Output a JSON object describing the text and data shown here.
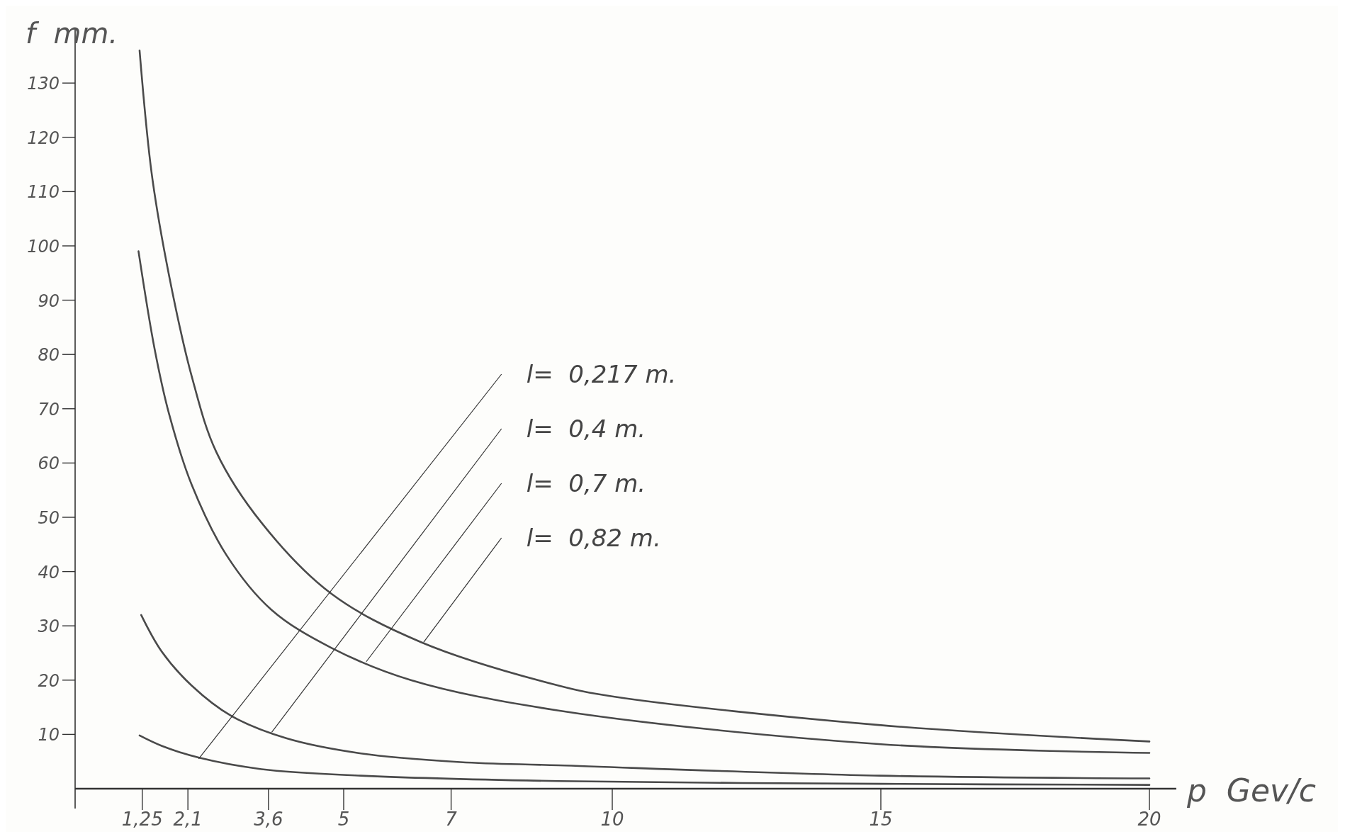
{
  "chart_data": {
    "type": "line",
    "xlabel": "p  Gev/c",
    "ylabel": "f  mm.",
    "xlim": [
      0,
      20.5
    ],
    "ylim": [
      0,
      140
    ],
    "xticks": [
      {
        "value": 1.25,
        "label": "1,25"
      },
      {
        "value": 2.1,
        "label": "2,1"
      },
      {
        "value": 3.6,
        "label": "3,6"
      },
      5,
      7,
      10,
      15,
      20
    ],
    "yticks": [
      10,
      20,
      30,
      40,
      50,
      60,
      70,
      80,
      90,
      100,
      110,
      120,
      130
    ],
    "grid": false,
    "marker": "none",
    "line_style": "solid",
    "series": [
      {
        "color": "#4a4a4a",
        "x": [
          1.2,
          1.43,
          1.75,
          2.17,
          2.63,
          3.47,
          4.76,
          6.44,
          9,
          10,
          15,
          20
        ],
        "values": [
          136,
          113,
          94.5,
          76,
          62,
          49,
          36,
          27,
          19,
          17,
          11.7,
          8.7
        ]
      },
      {
        "color": "#4a4a4a",
        "x": [
          1.18,
          1.48,
          1.75,
          2.17,
          2.82,
          3.65,
          4.76,
          6.25,
          9,
          15,
          20
        ],
        "values": [
          99,
          81,
          69,
          56,
          43,
          33,
          26,
          20,
          14.4,
          8.2,
          6.6
        ]
      },
      {
        "color": "#4a4a4a",
        "x": [
          1.23,
          1.61,
          2.17,
          2.91,
          3.93,
          5.32,
          7.17,
          9,
          15,
          20
        ],
        "values": [
          32,
          25.3,
          19,
          13.4,
          9.3,
          6.5,
          4.9,
          4.3,
          2.4,
          1.9
        ]
      },
      {
        "color": "#4a4a4a",
        "x": [
          1.2,
          1.61,
          2.31,
          3.47,
          5.32,
          9,
          15,
          20
        ],
        "values": [
          9.8,
          7.9,
          5.7,
          3.6,
          2.4,
          1.4,
          0.9,
          0.7
        ]
      }
    ],
    "annotations": [
      {
        "text": "l=  0,217 m.",
        "x": 2.3,
        "y": 5.5
      },
      {
        "text": "l=  0,4 m.",
        "x": 3.66,
        "y": 10.4
      },
      {
        "text": "l=  0,7 m.",
        "x": 5.42,
        "y": 23.4
      },
      {
        "text": "l=  0,82 m.",
        "x": 6.49,
        "y": 27
      }
    ]
  }
}
